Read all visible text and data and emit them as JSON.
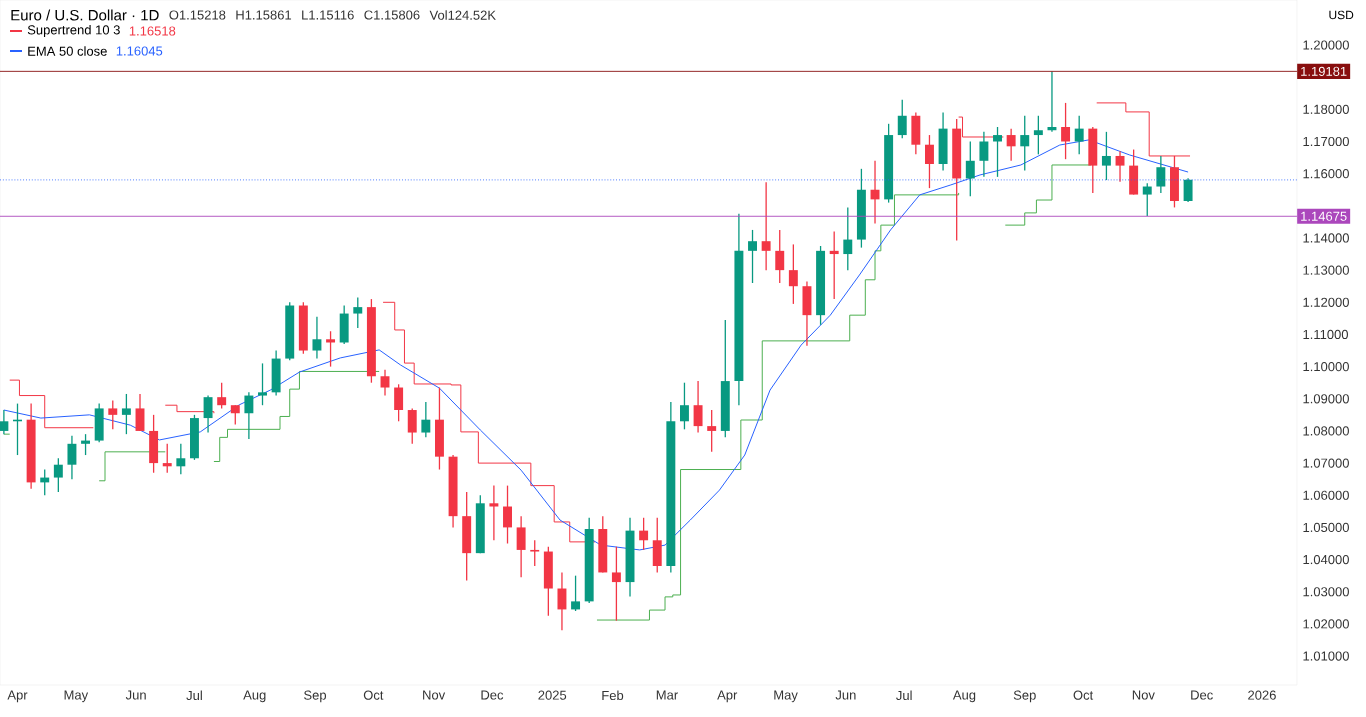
{
  "chart_data": {
    "type": "candlestick",
    "title": "Euro / U.S. Dollar · 1D",
    "annotations": [
      "O1.15218",
      "H1.15861",
      "L1.15116",
      "C1.15806",
      "Vol124.52K",
      "1.16518",
      "1.16045",
      "USD"
    ],
    "x": [
      "2024-03-25",
      "2024-04-01",
      "2024-04-08",
      "2024-04-15",
      "2024-04-22",
      "2024-04-29",
      "2024-05-06",
      "2024-05-13",
      "2024-05-20",
      "2024-05-27",
      "2024-06-03",
      "2024-06-10",
      "2024-06-17",
      "2024-06-24",
      "2024-07-01",
      "2024-07-08",
      "2024-07-15",
      "2024-07-22",
      "2024-07-29",
      "2024-08-05",
      "2024-08-12",
      "2024-08-19",
      "2024-08-26",
      "2024-09-02",
      "2024-09-09",
      "2024-09-16",
      "2024-09-23",
      "2024-09-30",
      "2024-10-07",
      "2024-10-14",
      "2024-10-21",
      "2024-10-28",
      "2024-11-04",
      "2024-11-11",
      "2024-11-18",
      "2024-11-25",
      "2024-12-02",
      "2024-12-09",
      "2024-12-16",
      "2024-12-23",
      "2024-12-30",
      "2025-01-06",
      "2025-01-13",
      "2025-01-20",
      "2025-01-27",
      "2025-02-03",
      "2025-02-10",
      "2025-02-17",
      "2025-02-24",
      "2025-03-03",
      "2025-03-10",
      "2025-03-17",
      "2025-03-24",
      "2025-03-31",
      "2025-04-07",
      "2025-04-14",
      "2025-04-21",
      "2025-04-28",
      "2025-05-05",
      "2025-05-12",
      "2025-05-19",
      "2025-05-26",
      "2025-06-02",
      "2025-06-09",
      "2025-06-16",
      "2025-06-23",
      "2025-06-30",
      "2025-07-07",
      "2025-07-14",
      "2025-07-21",
      "2025-07-28",
      "2025-08-04",
      "2025-08-11",
      "2025-08-18",
      "2025-08-25",
      "2025-09-01",
      "2025-09-08",
      "2025-09-15",
      "2025-09-22",
      "2025-09-29",
      "2025-10-06",
      "2025-10-13",
      "2025-10-20",
      "2025-10-27",
      "2025-11-03",
      "2025-11-10",
      "2025-11-17",
      "2025-11-24"
    ],
    "ohlc": [
      [
        1.08,
        1.0865,
        1.079,
        1.083
      ],
      [
        1.083,
        1.0885,
        1.0725,
        1.0835
      ],
      [
        1.0835,
        1.0885,
        1.062,
        1.064
      ],
      [
        1.064,
        1.068,
        1.06,
        1.0655
      ],
      [
        1.0655,
        1.0715,
        1.061,
        1.0695
      ],
      [
        1.0695,
        1.0785,
        1.065,
        1.076
      ],
      [
        1.076,
        1.079,
        1.0725,
        1.077
      ],
      [
        1.077,
        1.0885,
        1.0765,
        1.087
      ],
      [
        1.087,
        1.0895,
        1.0805,
        1.085
      ],
      [
        1.085,
        1.0915,
        1.079,
        1.087
      ],
      [
        1.087,
        1.0915,
        1.08,
        1.08
      ],
      [
        1.08,
        1.085,
        1.067,
        1.07
      ],
      [
        1.07,
        1.076,
        1.067,
        1.069
      ],
      [
        1.069,
        1.076,
        1.0665,
        1.0715
      ],
      [
        1.0715,
        1.085,
        1.071,
        1.084
      ],
      [
        1.084,
        1.091,
        1.0795,
        1.0905
      ],
      [
        1.0905,
        1.095,
        1.087,
        1.088
      ],
      [
        1.088,
        1.088,
        1.082,
        1.0855
      ],
      [
        1.0855,
        1.092,
        1.0775,
        1.091
      ],
      [
        1.091,
        1.101,
        1.088,
        1.092
      ],
      [
        1.092,
        1.105,
        1.091,
        1.1025
      ],
      [
        1.1025,
        1.12,
        1.102,
        1.119
      ],
      [
        1.119,
        1.12,
        1.104,
        1.105
      ],
      [
        1.105,
        1.1155,
        1.1025,
        1.1085
      ],
      [
        1.1085,
        1.111,
        1.1,
        1.1075
      ],
      [
        1.1075,
        1.119,
        1.107,
        1.1165
      ],
      [
        1.1165,
        1.1215,
        1.112,
        1.1185
      ],
      [
        1.1185,
        1.121,
        1.095,
        1.097
      ],
      [
        1.097,
        1.099,
        1.091,
        1.0935
      ],
      [
        1.0935,
        1.0945,
        1.083,
        1.0865
      ],
      [
        1.0865,
        1.087,
        1.076,
        1.0795
      ],
      [
        1.0795,
        1.089,
        1.078,
        1.0835
      ],
      [
        1.0835,
        1.0935,
        1.068,
        1.072
      ],
      [
        1.072,
        1.0725,
        1.05,
        1.0535
      ],
      [
        1.0535,
        1.061,
        1.0335,
        1.042
      ],
      [
        1.042,
        1.06,
        1.042,
        1.0575
      ],
      [
        1.0575,
        1.063,
        1.046,
        1.0565
      ],
      [
        1.0565,
        1.063,
        1.045,
        1.05
      ],
      [
        1.05,
        1.0535,
        1.0345,
        1.043
      ],
      [
        1.043,
        1.046,
        1.038,
        1.0425
      ],
      [
        1.0425,
        1.044,
        1.0225,
        1.031
      ],
      [
        1.031,
        1.036,
        1.018,
        1.0245
      ],
      [
        1.0245,
        1.035,
        1.024,
        1.027
      ],
      [
        1.027,
        1.053,
        1.0265,
        1.0495
      ],
      [
        1.0495,
        1.0535,
        1.036,
        1.036
      ],
      [
        1.036,
        1.044,
        1.021,
        1.033
      ],
      [
        1.033,
        1.053,
        1.0285,
        1.049
      ],
      [
        1.049,
        1.053,
        1.043,
        1.046
      ],
      [
        1.046,
        1.053,
        1.036,
        1.038
      ],
      [
        1.038,
        1.089,
        1.036,
        1.083
      ],
      [
        1.083,
        1.095,
        1.0805,
        1.088
      ],
      [
        1.088,
        1.0955,
        1.0795,
        1.0815
      ],
      [
        1.0815,
        1.0865,
        1.0735,
        1.08
      ],
      [
        1.08,
        1.1145,
        1.078,
        1.0955
      ],
      [
        1.0955,
        1.1475,
        1.088,
        1.136
      ],
      [
        1.136,
        1.1425,
        1.126,
        1.139
      ],
      [
        1.139,
        1.1573,
        1.13,
        1.136
      ],
      [
        1.136,
        1.1425,
        1.126,
        1.13
      ],
      [
        1.13,
        1.138,
        1.1195,
        1.125
      ],
      [
        1.125,
        1.1265,
        1.1065,
        1.116
      ],
      [
        1.116,
        1.1375,
        1.113,
        1.136
      ],
      [
        1.136,
        1.142,
        1.121,
        1.135
      ],
      [
        1.135,
        1.1495,
        1.13,
        1.1395
      ],
      [
        1.1395,
        1.1615,
        1.137,
        1.155
      ],
      [
        1.155,
        1.164,
        1.1445,
        1.152
      ],
      [
        1.152,
        1.1755,
        1.151,
        1.172
      ],
      [
        1.172,
        1.183,
        1.171,
        1.178
      ],
      [
        1.178,
        1.179,
        1.166,
        1.169
      ],
      [
        1.169,
        1.172,
        1.1555,
        1.163
      ],
      [
        1.163,
        1.179,
        1.161,
        1.174
      ],
      [
        1.174,
        1.177,
        1.1392,
        1.1585
      ],
      [
        1.1585,
        1.17,
        1.153,
        1.164
      ],
      [
        1.164,
        1.173,
        1.159,
        1.17
      ],
      [
        1.17,
        1.1745,
        1.159,
        1.172
      ],
      [
        1.172,
        1.174,
        1.164,
        1.1685
      ],
      [
        1.1685,
        1.178,
        1.161,
        1.172
      ],
      [
        1.172,
        1.178,
        1.166,
        1.1735
      ],
      [
        1.1735,
        1.1918,
        1.173,
        1.1745
      ],
      [
        1.1745,
        1.182,
        1.1645,
        1.17
      ],
      [
        1.17,
        1.178,
        1.166,
        1.174
      ],
      [
        1.174,
        1.1745,
        1.154,
        1.1625
      ],
      [
        1.1625,
        1.173,
        1.158,
        1.1655
      ],
      [
        1.1655,
        1.167,
        1.1575,
        1.1625
      ],
      [
        1.1625,
        1.1675,
        1.1535,
        1.1535
      ],
      [
        1.1535,
        1.157,
        1.1468,
        1.156
      ],
      [
        1.156,
        1.1655,
        1.154,
        1.162
      ],
      [
        1.162,
        1.1655,
        1.1495,
        1.1515
      ],
      [
        1.1515,
        1.1586,
        1.1512,
        1.1581
      ]
    ],
    "series": [
      {
        "name": "Supertrend 10 3",
        "type": "step",
        "color": "#f23645",
        "x": [
          "2024-03-28",
          "2024-04-02",
          "2024-04-15",
          "2024-05-10",
          "2024-05-14",
          "2024-06-16",
          "2024-06-22",
          "2024-07-11",
          "2024-07-12",
          "2024-10-06",
          "2024-10-12",
          "2024-10-17",
          "2024-10-22",
          "2024-11-10",
          "2024-11-15",
          "2024-11-24",
          "2024-12-21",
          "2025-01-02",
          "2025-01-10",
          "2025-01-23",
          "2025-01-24",
          "2025-07-29",
          "2025-07-31",
          "2025-08-21",
          "2025-08-22",
          "2025-10-08",
          "2025-10-21",
          "2025-10-23",
          "2025-10-30",
          "2025-11-04",
          "2025-11-25"
        ],
        "values": [
          1.0958,
          1.091,
          1.081,
          1.081,
          null,
          1.088,
          1.086,
          1.0855,
          null,
          1.12,
          1.1114,
          1.1011,
          1.0946,
          1.0943,
          1.0797,
          1.07,
          1.063,
          1.0517,
          1.0455,
          1.0455,
          null,
          1.1776,
          1.1714,
          1.1714,
          null,
          1.182,
          1.182,
          1.1792,
          1.1792,
          1.1655,
          1.1655
        ]
      },
      {
        "type": "step",
        "color": "#4caf50",
        "x": [
          "2024-03-25",
          "2024-03-28",
          "2024-03-29",
          "2024-05-13",
          "2024-05-16",
          "2024-06-16",
          "2024-06-17",
          "2024-07-11",
          "2024-07-14",
          "2024-07-18",
          "2024-08-11",
          "2024-08-14",
          "2024-08-19",
          "2024-08-24",
          "2024-10-04",
          "2024-10-05",
          "2025-01-24",
          "2025-02-15",
          "2025-02-20",
          "2025-02-28",
          "2025-03-04",
          "2025-03-08",
          "2025-04-07",
          "2025-04-08",
          "2025-04-19",
          "2025-05-24",
          "2025-06-03",
          "2025-06-11",
          "2025-06-16",
          "2025-06-19",
          "2025-06-26",
          "2025-07-29",
          "2025-07-30",
          "2025-08-22",
          "2025-08-30",
          "2025-09-01",
          "2025-09-07",
          "2025-09-15",
          "2025-10-05"
        ],
        "values": [
          1.079,
          1.079,
          null,
          1.0645,
          1.0735,
          1.0735,
          null,
          1.0705,
          1.078,
          1.0805,
          1.0805,
          1.0845,
          1.093,
          1.0985,
          1.0985,
          null,
          1.0212,
          1.0212,
          1.0243,
          1.0284,
          1.029,
          1.068,
          1.068,
          1.0834,
          1.108,
          1.108,
          1.116,
          1.127,
          1.136,
          1.144,
          1.1534,
          1.154,
          null,
          1.144,
          1.144,
          1.1478,
          1.1518,
          1.1627,
          1.1627
        ]
      },
      {
        "name": "EMA 50 close",
        "type": "line",
        "color": "#2962ff",
        "x": [
          "2024-03-25",
          "2024-04-13",
          "2024-05-08",
          "2024-05-29",
          "2024-06-13",
          "2024-07-04",
          "2024-07-24",
          "2024-08-09",
          "2024-08-24",
          "2024-09-14",
          "2024-10-04",
          "2024-10-15",
          "2024-11-04",
          "2024-11-25",
          "2024-12-16",
          "2025-01-05",
          "2025-01-26",
          "2025-02-15",
          "2025-02-28",
          "2025-03-13",
          "2025-03-28",
          "2025-04-10",
          "2025-04-23",
          "2025-05-09",
          "2025-05-24",
          "2025-06-08",
          "2025-06-24",
          "2025-07-09",
          "2025-07-25",
          "2025-08-09",
          "2025-08-30",
          "2025-09-19",
          "2025-10-04",
          "2025-10-25",
          "2025-11-24"
        ],
        "values": [
          1.0865,
          1.084,
          1.085,
          1.0818,
          1.0772,
          1.0797,
          1.0881,
          1.0927,
          1.0983,
          1.1027,
          1.1052,
          1.1005,
          1.0933,
          1.0803,
          1.0678,
          1.0523,
          1.0445,
          1.043,
          1.0445,
          1.0523,
          1.0616,
          1.0725,
          1.0927,
          1.1067,
          1.116,
          1.1285,
          1.1425,
          1.1534,
          1.1565,
          1.1596,
          1.1627,
          1.1689,
          1.1705,
          1.1658,
          1.1605
        ]
      }
    ],
    "xlim": [
      "2024-03-23",
      "2026-01-19"
    ],
    "xticks": [
      {
        "value": "2024-04-01",
        "label": "Apr"
      },
      {
        "value": "2024-05-01",
        "label": "May"
      },
      {
        "value": "2024-06-01",
        "label": "Jun"
      },
      {
        "value": "2024-07-01",
        "label": "Jul"
      },
      {
        "value": "2024-08-01",
        "label": "Aug"
      },
      {
        "value": "2024-09-01",
        "label": "Sep"
      },
      {
        "value": "2024-10-01",
        "label": "Oct"
      },
      {
        "value": "2024-11-01",
        "label": "Nov"
      },
      {
        "value": "2024-12-01",
        "label": "Dec"
      },
      {
        "value": "2025-01-01",
        "label": "2025"
      },
      {
        "value": "2025-02-01",
        "label": "Feb"
      },
      {
        "value": "2025-03-01",
        "label": "Mar"
      },
      {
        "value": "2025-04-01",
        "label": "Apr"
      },
      {
        "value": "2025-05-01",
        "label": "May"
      },
      {
        "value": "2025-06-01",
        "label": "Jun"
      },
      {
        "value": "2025-07-01",
        "label": "Jul"
      },
      {
        "value": "2025-08-01",
        "label": "Aug"
      },
      {
        "value": "2025-09-01",
        "label": "Sep"
      },
      {
        "value": "2025-10-01",
        "label": "Oct"
      },
      {
        "value": "2025-11-01",
        "label": "Nov"
      },
      {
        "value": "2025-12-01",
        "label": "Dec"
      },
      {
        "value": "2026-01-01",
        "label": "2026"
      }
    ],
    "ylim": [
      1.001,
      1.214
    ],
    "yticks": [
      {
        "value": 1.01,
        "label": "1.01000"
      },
      {
        "value": 1.02,
        "label": "1.02000"
      },
      {
        "value": 1.03,
        "label": "1.03000"
      },
      {
        "value": 1.04,
        "label": "1.04000"
      },
      {
        "value": 1.05,
        "label": "1.05000"
      },
      {
        "value": 1.06,
        "label": "1.06000"
      },
      {
        "value": 1.07,
        "label": "1.07000"
      },
      {
        "value": 1.08,
        "label": "1.08000"
      },
      {
        "value": 1.09,
        "label": "1.09000"
      },
      {
        "value": 1.1,
        "label": "1.10000"
      },
      {
        "value": 1.11,
        "label": "1.11000"
      },
      {
        "value": 1.12,
        "label": "1.12000"
      },
      {
        "value": 1.13,
        "label": "1.13000"
      },
      {
        "value": 1.14,
        "label": "1.14000"
      },
      {
        "value": 1.16,
        "label": "1.16000"
      },
      {
        "value": 1.17,
        "label": "1.17000"
      },
      {
        "value": 1.18,
        "label": "1.18000"
      },
      {
        "value": 1.2,
        "label": "1.20000"
      }
    ],
    "ref_lines": [
      {
        "axis": "y",
        "value": 1.19181,
        "label": "1.19181",
        "color": "#880e0e"
      },
      {
        "axis": "y",
        "value": 1.14675,
        "label": "1.14675",
        "color": "#ab47bc"
      },
      {
        "axis": "y",
        "value": 1.15806,
        "color": "#2962ff",
        "line_style": "dotted"
      }
    ],
    "legend": "top left",
    "marker": "none",
    "line_style": "solid",
    "grid": false
  }
}
